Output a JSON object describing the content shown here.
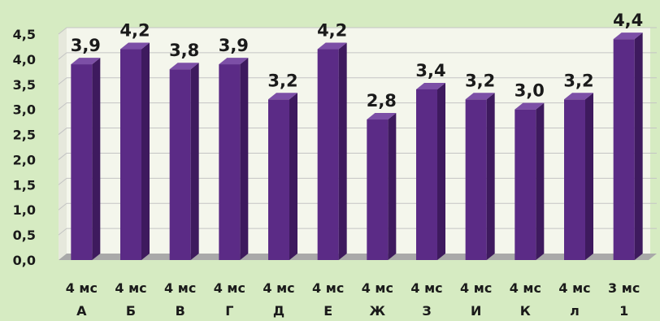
{
  "chart_data": {
    "type": "bar",
    "title": "",
    "xlabel": "",
    "ylabel": "",
    "categories": [
      [
        "4 мс",
        "А"
      ],
      [
        "4 мс",
        "Б"
      ],
      [
        "4 мс",
        "В"
      ],
      [
        "4 мс",
        "Г"
      ],
      [
        "4 мс",
        "Д"
      ],
      [
        "4 мс",
        "Е"
      ],
      [
        "4 мс",
        "Ж"
      ],
      [
        "4 мс",
        "З"
      ],
      [
        "4 мс",
        "И"
      ],
      [
        "4  мс",
        "К"
      ],
      [
        "4 мс",
        "л"
      ],
      [
        "3 мс",
        "1"
      ]
    ],
    "values": [
      3.9,
      4.2,
      3.8,
      3.9,
      3.2,
      4.2,
      2.8,
      3.4,
      3.2,
      3.0,
      3.2,
      4.4
    ],
    "value_labels": [
      "3,9",
      "4,2",
      "3,8",
      "3,9",
      "3,2",
      "4,2",
      "2,8",
      "3,4",
      "3,2",
      "3,0",
      "3,2",
      "4,4"
    ],
    "ylim": [
      0,
      4.5
    ],
    "yticks": [
      0,
      0.5,
      1.0,
      1.5,
      2.0,
      2.5,
      3.0,
      3.5,
      4.0,
      4.5
    ],
    "ytick_labels": [
      "0,0",
      "0,5",
      "1,0",
      "1,5",
      "2,0",
      "2,5",
      "3,0",
      "3,5",
      "4,0",
      "4,5"
    ],
    "grid": true,
    "legend": "none",
    "colors": {
      "background": "#d6ebc2",
      "plot_back_wall": "#f4f6ec",
      "floor": "#a9a9a9",
      "gridline": "#c4c4c4",
      "bar_front": "#5b2b86",
      "bar_side": "#3e1a5e",
      "bar_top": "#7c4fa6"
    }
  }
}
